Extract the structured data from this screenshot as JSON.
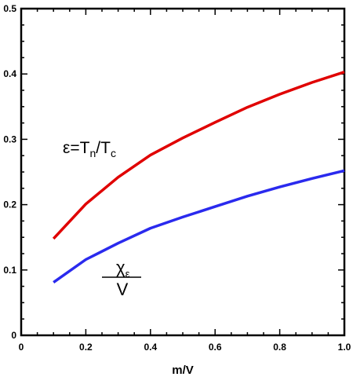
{
  "chart_data": {
    "type": "line",
    "title": "",
    "xlabel": "m/V",
    "ylabel": "",
    "xlim": [
      0,
      1.0
    ],
    "ylim": [
      0,
      0.5
    ],
    "grid": false,
    "x_ticks": [
      "0",
      "0.2",
      "0.4",
      "0.6",
      "0.8",
      "1.0"
    ],
    "x_tick_values": [
      0,
      0.2,
      0.4,
      0.6,
      0.8,
      1.0
    ],
    "y_ticks": [
      "0",
      "0.1",
      "0.2",
      "0.3",
      "0.4",
      "0.5"
    ],
    "y_tick_values": [
      0,
      0.1,
      0.2,
      0.3,
      0.4,
      0.5
    ],
    "series": [
      {
        "color": "#e00000",
        "x": [
          0.1,
          0.2,
          0.3,
          0.4,
          0.5,
          0.6,
          0.7,
          0.8,
          0.9,
          1.0
        ],
        "values": [
          0.148,
          0.201,
          0.242,
          0.276,
          0.302,
          0.326,
          0.349,
          0.369,
          0.387,
          0.403
        ]
      },
      {
        "color": "#2a2aee",
        "x": [
          0.1,
          0.2,
          0.3,
          0.4,
          0.5,
          0.6,
          0.7,
          0.8,
          0.9,
          1.0
        ],
        "values": [
          0.081,
          0.116,
          0.141,
          0.164,
          0.181,
          0.197,
          0.213,
          0.227,
          0.24,
          0.252
        ]
      }
    ],
    "annotations": {
      "red": {
        "eps": "ε",
        "eq": "=T",
        "sub1": "n",
        "slash": "/T",
        "sub2": "c"
      },
      "blue": {
        "chi": "χ",
        "sub": "ε",
        "den": "V"
      }
    }
  }
}
